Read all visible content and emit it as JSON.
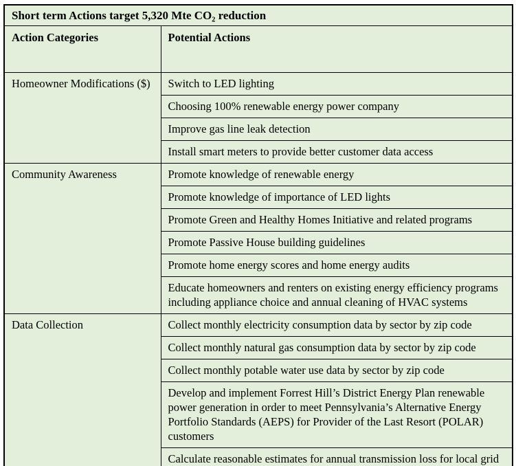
{
  "colors": {
    "page_bg": "#ffffff",
    "cell_bg": "#e3efda",
    "border": "#000000",
    "text": "#000000",
    "shadow": "#8d8d8d"
  },
  "table": {
    "title": "Short term Actions target 5,320 Mte CO₂ reduction",
    "columns": [
      "Action Categories",
      "Potential Actions"
    ],
    "groups": [
      {
        "category": "Homeowner Modifications ($)",
        "actions": [
          "Switch to LED lighting",
          "Choosing 100% renewable energy power company",
          "Improve gas line leak detection",
          "Install smart meters to provide better customer data access"
        ]
      },
      {
        "category": "Community Awareness",
        "actions": [
          "Promote knowledge of renewable energy",
          "Promote knowledge of importance of LED lights",
          "Promote Green and Healthy Homes Initiative and related programs",
          "Promote Passive House building guidelines",
          "Promote home energy scores and home energy audits",
          "Educate homeowners and renters on existing energy efficiency programs including appliance choice and annual cleaning of HVAC systems"
        ]
      },
      {
        "category": "Data Collection",
        "actions": [
          "Collect monthly electricity consumption data by sector by zip code",
          "Collect monthly natural gas consumption data by sector by zip code",
          "Collect monthly potable water use data by sector by zip code",
          "Develop and implement Forrest Hill’s District Energy Plan renewable power generation in order to meet Pennsylvania’s Alternative Energy Portfolio Standards (AEPS) for Provider of the Last Resort (POLAR) customers",
          "Calculate reasonable estimates for annual transmission loss for local grid"
        ]
      }
    ]
  }
}
